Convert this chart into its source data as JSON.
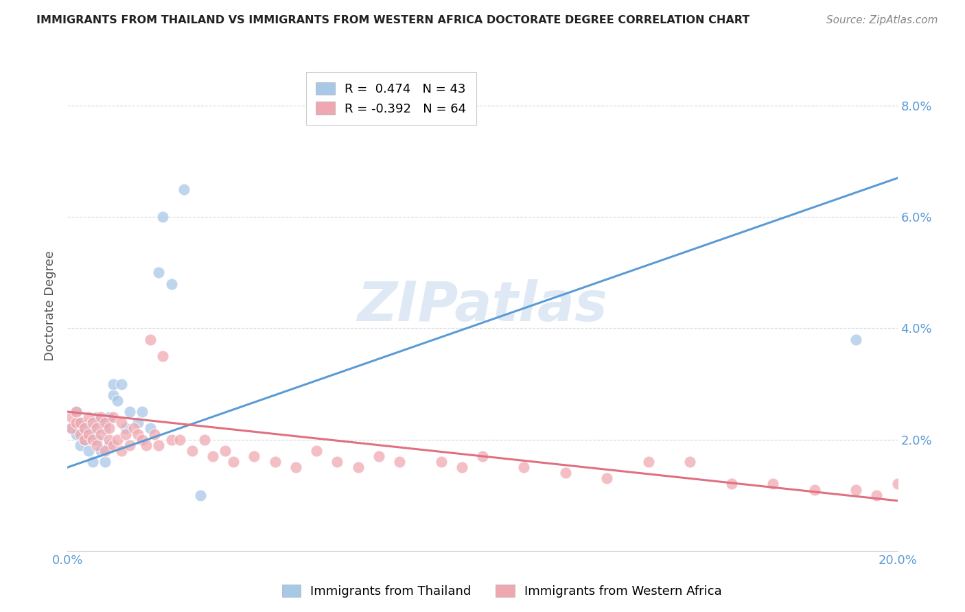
{
  "title": "IMMIGRANTS FROM THAILAND VS IMMIGRANTS FROM WESTERN AFRICA DOCTORATE DEGREE CORRELATION CHART",
  "source": "Source: ZipAtlas.com",
  "ylabel": "Doctorate Degree",
  "ytick_labels": [
    "2.0%",
    "4.0%",
    "6.0%",
    "8.0%"
  ],
  "ytick_values": [
    0.02,
    0.04,
    0.06,
    0.08
  ],
  "xlim": [
    0.0,
    0.2
  ],
  "ylim": [
    0.0,
    0.088
  ],
  "color_thailand": "#a8c8e8",
  "color_western_africa": "#f0a8b0",
  "color_line_thailand": "#5b9bd5",
  "color_line_wa": "#e07080",
  "th_line_x": [
    0.0,
    0.2
  ],
  "th_line_y": [
    0.015,
    0.067
  ],
  "wa_line_x": [
    0.0,
    0.2
  ],
  "wa_line_y": [
    0.025,
    0.009
  ],
  "thailand_x": [
    0.001,
    0.002,
    0.002,
    0.003,
    0.003,
    0.004,
    0.004,
    0.005,
    0.005,
    0.006,
    0.006,
    0.007,
    0.007,
    0.008,
    0.008,
    0.009,
    0.009,
    0.01,
    0.01,
    0.011,
    0.011,
    0.012,
    0.013,
    0.014,
    0.015,
    0.017,
    0.018,
    0.02,
    0.022,
    0.023,
    0.025,
    0.028,
    0.032,
    0.19
  ],
  "thailand_y": [
    0.022,
    0.021,
    0.025,
    0.019,
    0.023,
    0.02,
    0.022,
    0.018,
    0.021,
    0.016,
    0.022,
    0.02,
    0.024,
    0.018,
    0.023,
    0.016,
    0.022,
    0.019,
    0.024,
    0.028,
    0.03,
    0.027,
    0.03,
    0.022,
    0.025,
    0.023,
    0.025,
    0.022,
    0.05,
    0.06,
    0.048,
    0.065,
    0.01,
    0.038
  ],
  "wa_x": [
    0.001,
    0.001,
    0.002,
    0.002,
    0.003,
    0.003,
    0.004,
    0.004,
    0.005,
    0.005,
    0.006,
    0.006,
    0.007,
    0.007,
    0.008,
    0.008,
    0.009,
    0.009,
    0.01,
    0.01,
    0.011,
    0.011,
    0.012,
    0.013,
    0.013,
    0.014,
    0.015,
    0.016,
    0.017,
    0.018,
    0.019,
    0.02,
    0.021,
    0.022,
    0.023,
    0.025,
    0.027,
    0.03,
    0.033,
    0.035,
    0.038,
    0.04,
    0.045,
    0.05,
    0.055,
    0.06,
    0.065,
    0.07,
    0.075,
    0.08,
    0.09,
    0.095,
    0.1,
    0.11,
    0.12,
    0.13,
    0.14,
    0.15,
    0.16,
    0.17,
    0.18,
    0.19,
    0.195,
    0.2
  ],
  "wa_y": [
    0.024,
    0.022,
    0.023,
    0.025,
    0.021,
    0.023,
    0.02,
    0.022,
    0.021,
    0.024,
    0.02,
    0.023,
    0.019,
    0.022,
    0.021,
    0.024,
    0.018,
    0.023,
    0.02,
    0.022,
    0.019,
    0.024,
    0.02,
    0.023,
    0.018,
    0.021,
    0.019,
    0.022,
    0.021,
    0.02,
    0.019,
    0.038,
    0.021,
    0.019,
    0.035,
    0.02,
    0.02,
    0.018,
    0.02,
    0.017,
    0.018,
    0.016,
    0.017,
    0.016,
    0.015,
    0.018,
    0.016,
    0.015,
    0.017,
    0.016,
    0.016,
    0.015,
    0.017,
    0.015,
    0.014,
    0.013,
    0.016,
    0.016,
    0.012,
    0.012,
    0.011,
    0.011,
    0.01,
    0.012
  ],
  "background_color": "#ffffff",
  "grid_color": "#d8d8d8"
}
